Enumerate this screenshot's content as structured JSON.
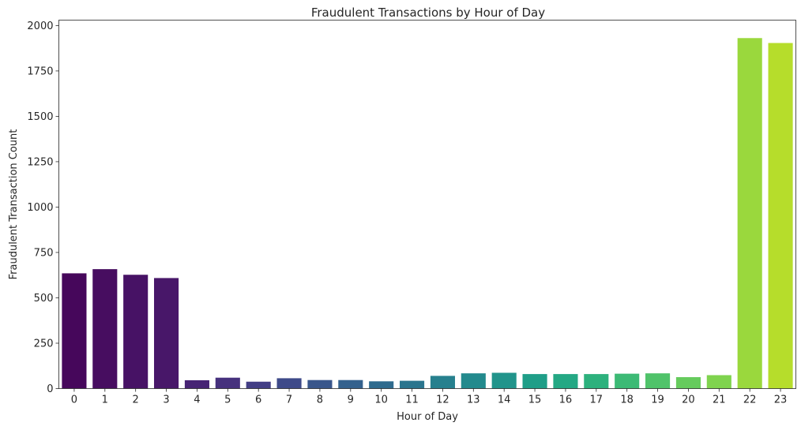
{
  "chart_data": {
    "type": "bar",
    "title": "Fraudulent Transactions by Hour of Day",
    "xlabel": "Hour of Day",
    "ylabel": "Fraudulent Transaction Count",
    "categories": [
      "0",
      "1",
      "2",
      "3",
      "4",
      "5",
      "6",
      "7",
      "8",
      "9",
      "10",
      "11",
      "12",
      "13",
      "14",
      "15",
      "16",
      "17",
      "18",
      "19",
      "20",
      "21",
      "22",
      "23"
    ],
    "values": [
      635,
      658,
      627,
      609,
      46,
      60,
      38,
      57,
      47,
      47,
      40,
      43,
      70,
      84,
      87,
      80,
      80,
      80,
      82,
      84,
      63,
      74,
      1931,
      1904
    ],
    "ylim": [
      0,
      2030
    ],
    "yticks": [
      0,
      250,
      500,
      750,
      1000,
      1250,
      1500,
      1750,
      2000
    ],
    "grid": false,
    "legend": "none",
    "palette": "viridis",
    "colors": [
      "#440154",
      "#46085c",
      "#471063",
      "#48186a",
      "#472d7b",
      "#424086",
      "#3b528b",
      "#33638d",
      "#2c728e",
      "#26828e",
      "#21918c",
      "#1fa088",
      "#28ae80",
      "#3fbc73",
      "#5ec962",
      "#84d44b",
      "#addc30",
      "#d8e219",
      "#fde725"
    ]
  }
}
